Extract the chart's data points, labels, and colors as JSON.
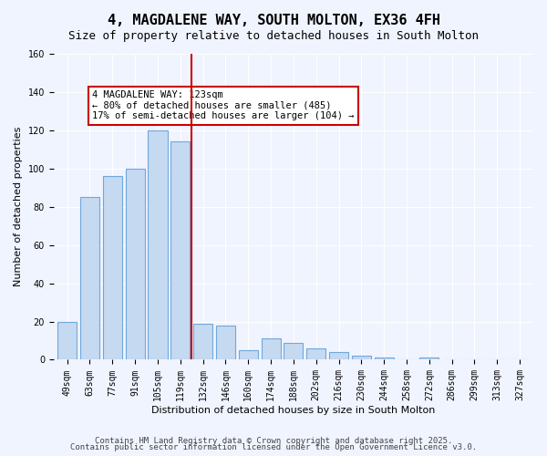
{
  "title": "4, MAGDALENE WAY, SOUTH MOLTON, EX36 4FH",
  "subtitle": "Size of property relative to detached houses in South Molton",
  "xlabel": "Distribution of detached houses by size in South Molton",
  "ylabel": "Number of detached properties",
  "bar_labels": [
    "49sqm",
    "63sqm",
    "77sqm",
    "91sqm",
    "105sqm",
    "119sqm",
    "132sqm",
    "146sqm",
    "160sqm",
    "174sqm",
    "188sqm",
    "202sqm",
    "216sqm",
    "230sqm",
    "244sqm",
    "258sqm",
    "272sqm",
    "286sqm",
    "299sqm",
    "313sqm",
    "327sqm"
  ],
  "bar_heights": [
    20,
    85,
    96,
    100,
    120,
    114,
    19,
    18,
    5,
    11,
    9,
    6,
    4,
    2,
    1,
    0,
    1,
    0,
    0,
    0,
    0
  ],
  "bar_color": "#c5d9f1",
  "bar_edge_color": "#6fa8dc",
  "vline_x": 5.5,
  "vline_color": "#cc0000",
  "annotation_text": "4 MAGDALENE WAY: 123sqm\n← 80% of detached houses are smaller (485)\n17% of semi-detached houses are larger (104) →",
  "annotation_box_color": "#ffffff",
  "annotation_box_edge": "#cc0000",
  "ylim": [
    0,
    160
  ],
  "yticks": [
    0,
    20,
    40,
    60,
    80,
    100,
    120,
    140,
    160
  ],
  "footer1": "Contains HM Land Registry data © Crown copyright and database right 2025.",
  "footer2": "Contains public sector information licensed under the Open Government Licence v3.0.",
  "bg_color": "#f0f4ff",
  "grid_color": "#ffffff",
  "title_fontsize": 11,
  "subtitle_fontsize": 9,
  "axis_label_fontsize": 8,
  "tick_fontsize": 7,
  "annotation_fontsize": 7.5,
  "footer_fontsize": 6.5
}
